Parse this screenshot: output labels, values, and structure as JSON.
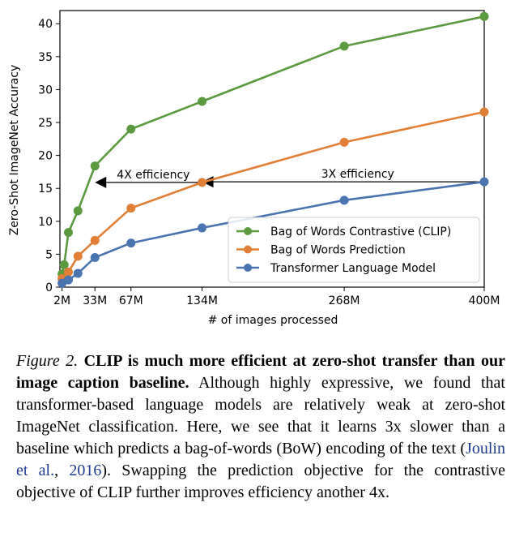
{
  "chart_data": {
    "type": "line",
    "xlabel": "# of images processed",
    "ylabel": "Zero-Shot ImageNet Accuracy",
    "x_ticks": [
      {
        "value": 2,
        "label": "2M"
      },
      {
        "value": 33,
        "label": "33M"
      },
      {
        "value": 67,
        "label": "67M"
      },
      {
        "value": 134,
        "label": "134M"
      },
      {
        "value": 268,
        "label": "268M"
      },
      {
        "value": 400,
        "label": "400M"
      }
    ],
    "y_ticks": [
      0,
      5,
      10,
      15,
      20,
      25,
      30,
      35,
      40
    ],
    "xlim": [
      0,
      400
    ],
    "ylim": [
      0,
      42
    ],
    "grid": false,
    "legend_position": "lower-right",
    "series": [
      {
        "name": "Bag of Words Contrastive (CLIP)",
        "color": "#5b9a3f",
        "points": [
          [
            2,
            2.0
          ],
          [
            4,
            3.4
          ],
          [
            8,
            8.3
          ],
          [
            17,
            11.6
          ],
          [
            33,
            18.4
          ],
          [
            67,
            24.0
          ],
          [
            134,
            28.2
          ],
          [
            268,
            36.6
          ],
          [
            400,
            41.1
          ]
        ]
      },
      {
        "name": "Bag of Words Prediction",
        "color": "#e07f35",
        "points": [
          [
            2,
            1.3
          ],
          [
            8,
            2.3
          ],
          [
            17,
            4.7
          ],
          [
            33,
            7.1
          ],
          [
            67,
            12.0
          ],
          [
            134,
            15.9
          ],
          [
            268,
            22.0
          ],
          [
            400,
            26.6
          ]
        ]
      },
      {
        "name": "Transformer Language Model",
        "color": "#4a74b0",
        "points": [
          [
            2,
            0.6
          ],
          [
            8,
            1.1
          ],
          [
            17,
            2.1
          ],
          [
            33,
            4.5
          ],
          [
            67,
            6.7
          ],
          [
            134,
            9.0
          ],
          [
            268,
            13.2
          ],
          [
            400,
            16.0
          ]
        ]
      }
    ],
    "annotations": [
      {
        "text": "4X efficiency",
        "arrow_from": [
          134,
          15.9
        ],
        "arrow_to": [
          33,
          15.9
        ]
      },
      {
        "text": "3X efficiency",
        "arrow_from": [
          400,
          16.0
        ],
        "arrow_to": [
          134,
          16.0
        ]
      }
    ]
  },
  "caption": {
    "figure_label": "Figure 2.",
    "bold_text": "CLIP is much more efficient at zero-shot transfer than our image caption baseline.",
    "text_part1": "Although highly expressive, we found that transformer-based language models are relatively weak at zero-shot ImageNet classification. Here, we see that it learns 3x slower than a baseline which predicts a bag-of-words (BoW) encoding of the text (",
    "citation_author": "Joulin et al.",
    "citation_sep": ", ",
    "citation_year": "2016",
    "text_part2": "). Swapping the prediction objective for the contrastive objective of CLIP further improves efficiency another 4x."
  }
}
